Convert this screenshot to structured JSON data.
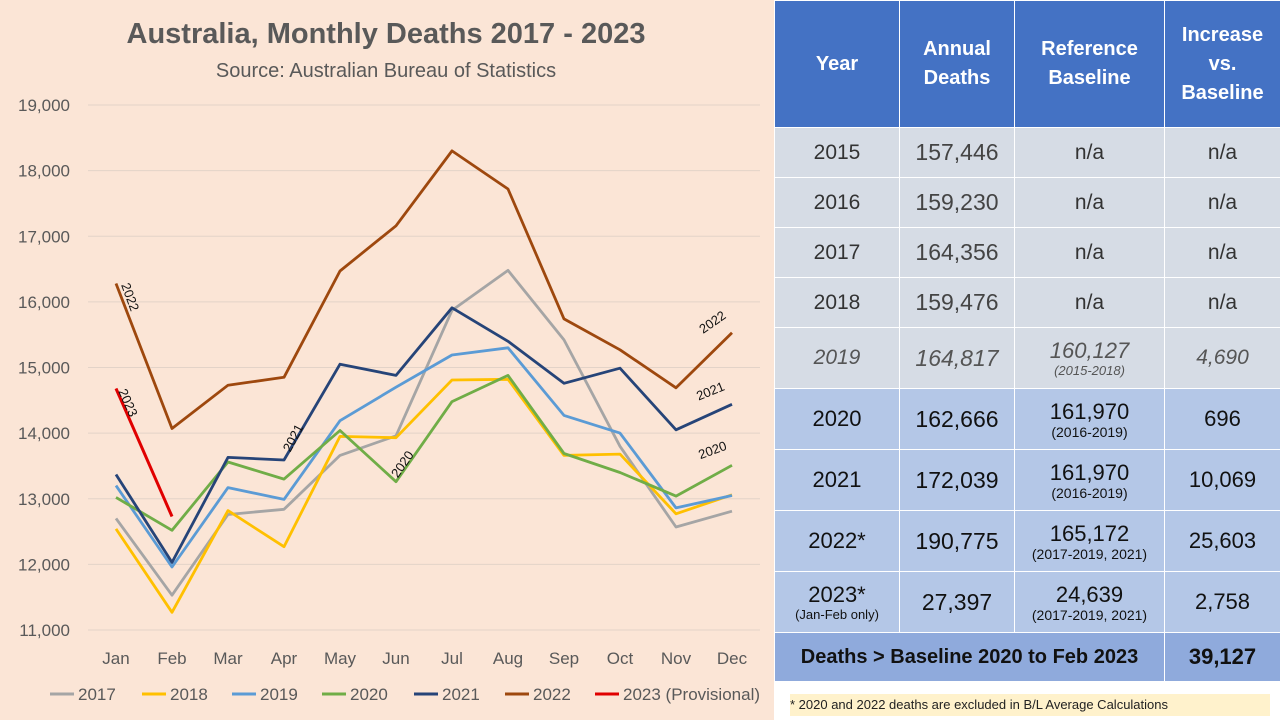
{
  "chart_data": {
    "type": "line",
    "title": "Australia, Monthly Deaths 2017 - 2023",
    "subtitle": "Source: Australian Bureau of Statistics",
    "categories": [
      "Jan",
      "Feb",
      "Mar",
      "Apr",
      "May",
      "Jun",
      "Jul",
      "Aug",
      "Sep",
      "Oct",
      "Nov",
      "Dec"
    ],
    "ylim": [
      11000,
      19000
    ],
    "yticks": [
      "11,000",
      "12,000",
      "13,000",
      "14,000",
      "15,000",
      "16,000",
      "17,000",
      "18,000",
      "19,000"
    ],
    "grid": true,
    "legend_position": "bottom",
    "series": [
      {
        "name": "2017",
        "color": "#a5a5a5",
        "values": [
          12700,
          11530,
          12760,
          12840,
          13660,
          13960,
          15870,
          16480,
          15420,
          13800,
          12570,
          12810
        ]
      },
      {
        "name": "2018",
        "color": "#ffc000",
        "values": [
          12540,
          11270,
          12820,
          12270,
          13950,
          13930,
          14810,
          14820,
          13660,
          13680,
          12770,
          13060
        ]
      },
      {
        "name": "2019",
        "color": "#5b9bd5",
        "values": [
          13200,
          11960,
          13170,
          12990,
          14190,
          14700,
          15190,
          15300,
          14270,
          14000,
          12860,
          13050
        ]
      },
      {
        "name": "2020",
        "color": "#70ad47",
        "values": [
          13020,
          12520,
          13560,
          13300,
          14040,
          13260,
          14480,
          14880,
          13690,
          13400,
          13040,
          13510
        ]
      },
      {
        "name": "2021",
        "color": "#264478",
        "values": [
          13370,
          12030,
          13630,
          13590,
          15050,
          14880,
          15910,
          15400,
          14760,
          14990,
          14050,
          14440
        ]
      },
      {
        "name": "2022",
        "color": "#9e480e",
        "values": [
          16280,
          14070,
          14730,
          14850,
          16470,
          17160,
          18300,
          17720,
          15740,
          15270,
          14690,
          15530
        ]
      },
      {
        "name": "2023 (Provisional)",
        "color": "#e00000",
        "values": [
          14680,
          12730,
          null,
          null,
          null,
          null,
          null,
          null,
          null,
          null,
          null,
          null
        ]
      }
    ],
    "annotations": [
      {
        "text": "2022",
        "series": "2022",
        "month": "Jan"
      },
      {
        "text": "2023",
        "series": "2023 (Provisional)",
        "month": "Jan"
      },
      {
        "text": "2021",
        "series": "2021",
        "month": "Apr"
      },
      {
        "text": "2020",
        "series": "2020",
        "month": "Jun"
      },
      {
        "text": "2022",
        "series": "2022",
        "month": "Dec"
      },
      {
        "text": "2021",
        "series": "2021",
        "month": "Dec"
      },
      {
        "text": "2020",
        "series": "2020",
        "month": "Dec"
      }
    ]
  },
  "table": {
    "headers": {
      "year": "Year",
      "annual_1": "Annual",
      "annual_2": "Deaths",
      "ref_1": "Reference",
      "ref_2": "Baseline",
      "inc_1": "Increase",
      "inc_2": "vs.",
      "inc_3": "Baseline"
    },
    "rows": [
      {
        "year": "2015",
        "deaths": "157,446",
        "baseline": "n/a",
        "increase": "n/a"
      },
      {
        "year": "2016",
        "deaths": "159,230",
        "baseline": "n/a",
        "increase": "n/a"
      },
      {
        "year": "2017",
        "deaths": "164,356",
        "baseline": "n/a",
        "increase": "n/a"
      },
      {
        "year": "2018",
        "deaths": "159,476",
        "baseline": "n/a",
        "increase": "n/a"
      },
      {
        "year": "2019",
        "deaths": "164,817",
        "baseline": "160,127",
        "baseline_range": "(2015-2018)",
        "increase": "4,690"
      },
      {
        "year": "2020",
        "deaths": "162,666",
        "baseline": "161,970",
        "baseline_range": "(2016-2019)",
        "increase": "696"
      },
      {
        "year": "2021",
        "deaths": "172,039",
        "baseline": "161,970",
        "baseline_range": "(2016-2019)",
        "increase": "10,069"
      },
      {
        "year": "2022*",
        "deaths": "190,775",
        "baseline": "165,172",
        "baseline_range": "(2017-2019, 2021)",
        "increase": "25,603"
      },
      {
        "year": "2023*",
        "year_note": "(Jan-Feb only)",
        "deaths": "27,397",
        "baseline": "24,639",
        "baseline_range": "(2017-2019, 2021)",
        "increase": "2,758"
      }
    ],
    "total_label": "Deaths > Baseline 2020 to Feb 2023",
    "total_value": "39,127",
    "footnote": "* 2020 and 2022 deaths are excluded in B/L Average Calculations"
  }
}
